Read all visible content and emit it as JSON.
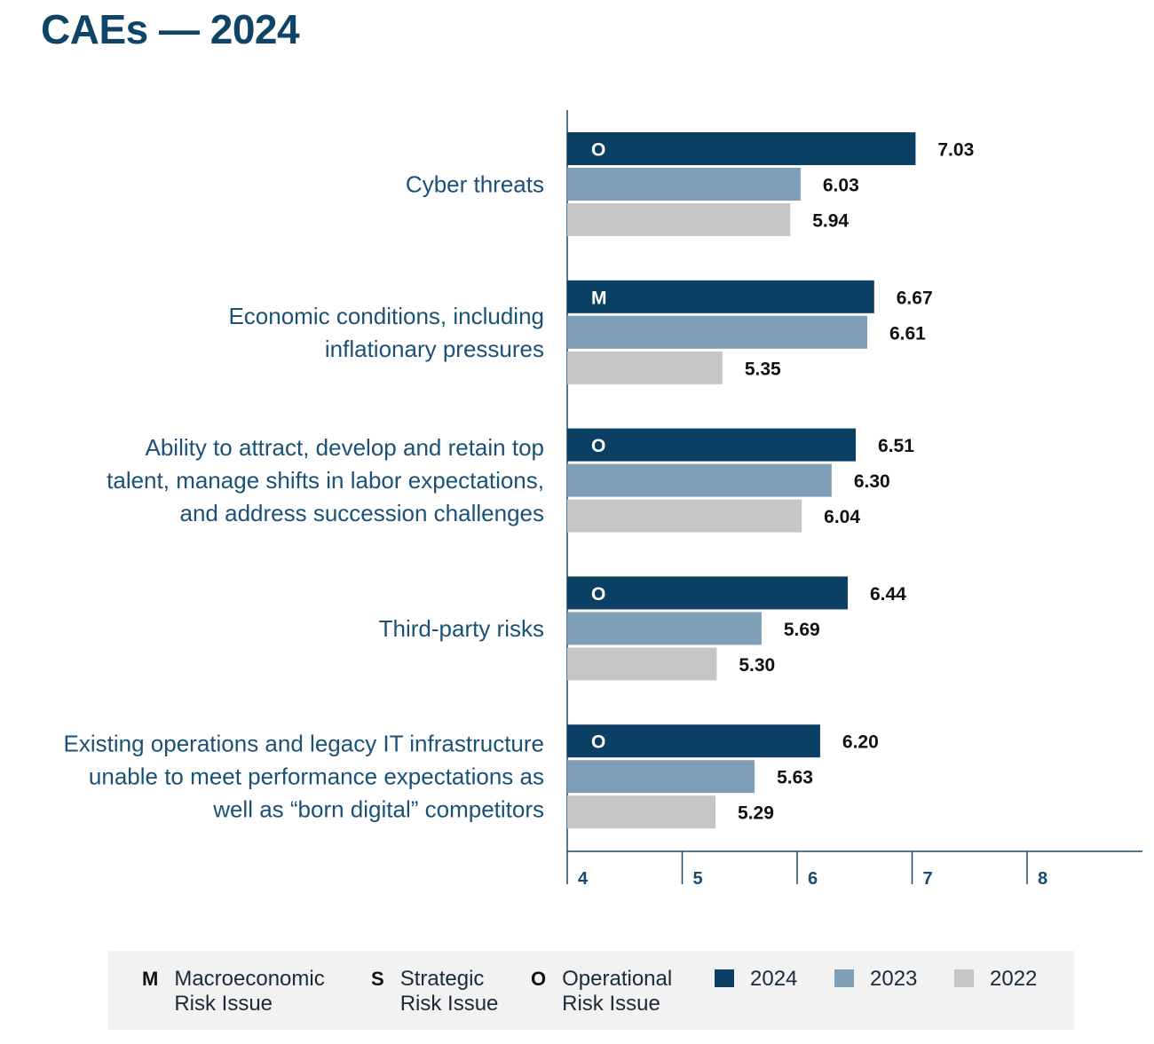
{
  "title": "CAEs — 2024",
  "colors": {
    "2024": "#0b3f63",
    "2023": "#7f9fb6",
    "2022": "#c6c6c6",
    "axis": "#1a4a6e"
  },
  "chart_data": {
    "type": "bar",
    "orientation": "horizontal",
    "title": "CAEs — 2024",
    "categories": [
      [
        "Cyber threats"
      ],
      [
        "Economic conditions, including",
        "inflationary pressures"
      ],
      [
        "Ability to attract, develop and retain top",
        "talent, manage shifts in labor expectations,",
        "and address succession challenges"
      ],
      [
        "Third-party risks"
      ],
      [
        "Existing operations and legacy IT infrastructure",
        "unable to meet performance expectations as",
        "well as “born digital” competitors"
      ]
    ],
    "risk_codes": [
      "O",
      "M",
      "O",
      "O",
      "O"
    ],
    "series": [
      {
        "name": "2024",
        "values": [
          7.03,
          6.67,
          6.51,
          6.44,
          6.2
        ],
        "labels": [
          "7.03",
          "6.67",
          "6.51",
          "6.44",
          "6.20"
        ]
      },
      {
        "name": "2023",
        "values": [
          6.03,
          6.61,
          6.3,
          5.69,
          5.63
        ],
        "labels": [
          "6.03",
          "6.61",
          "6.30",
          "5.69",
          "5.63"
        ]
      },
      {
        "name": "2022",
        "values": [
          5.94,
          5.35,
          6.04,
          5.3,
          5.29
        ],
        "labels": [
          "5.94",
          "5.35",
          "6.04",
          "5.30",
          "5.29"
        ]
      }
    ],
    "xlim": [
      4,
      9
    ],
    "xticks": [
      "4",
      "5",
      "6",
      "7",
      "8"
    ],
    "xtick_values": [
      4,
      5,
      6,
      7,
      8
    ],
    "legend_position": "bottom"
  },
  "legend": {
    "risk_types": [
      {
        "code": "M",
        "line1": "Macroeconomic",
        "line2": "Risk Issue"
      },
      {
        "code": "S",
        "line1": "Strategic",
        "line2": "Risk Issue"
      },
      {
        "code": "O",
        "line1": "Operational",
        "line2": "Risk Issue"
      }
    ],
    "years": [
      "2024",
      "2023",
      "2022"
    ]
  }
}
